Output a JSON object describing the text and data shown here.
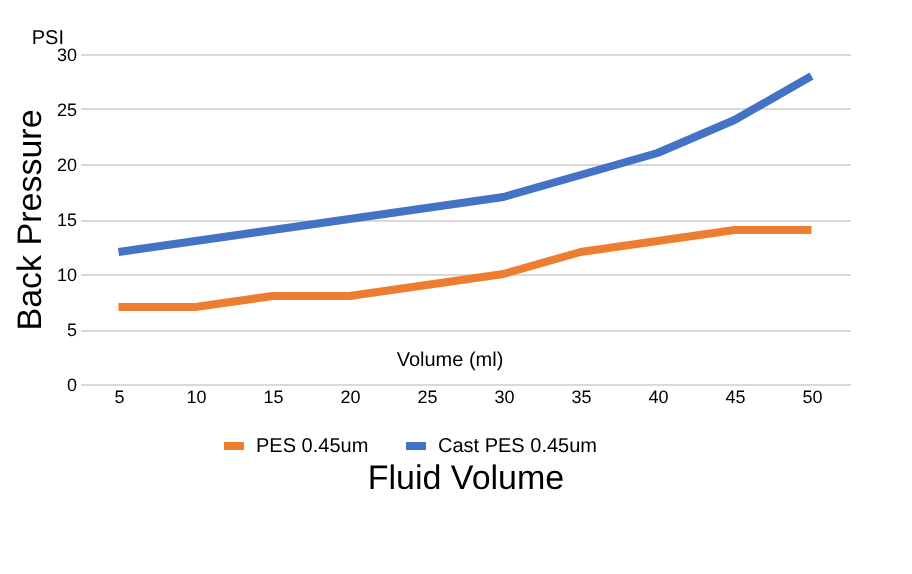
{
  "chart_data": {
    "type": "line",
    "xlabel": "Fluid Volume",
    "ylabel": "Back Pressure",
    "annotations": [
      "PSI",
      "Volume (ml)"
    ],
    "categories": [
      "5",
      "10",
      "15",
      "20",
      "25",
      "30",
      "35",
      "40",
      "45",
      "50"
    ],
    "series": [
      {
        "name": "PES 0.45um",
        "color": "#ed7d31",
        "values": [
          7,
          7,
          8,
          8,
          9,
          10,
          12,
          13,
          14,
          14
        ]
      },
      {
        "name": "Cast PES 0.45um",
        "color": "#4472c4",
        "values": [
          12,
          13,
          14,
          15,
          16,
          17,
          19,
          21,
          24,
          28
        ]
      }
    ],
    "ylim": [
      0,
      30
    ],
    "yticks": [
      0,
      5,
      10,
      15,
      20,
      25,
      30
    ],
    "grid": "y",
    "legend": "bottom",
    "marker": "none",
    "line_style": "solid"
  }
}
